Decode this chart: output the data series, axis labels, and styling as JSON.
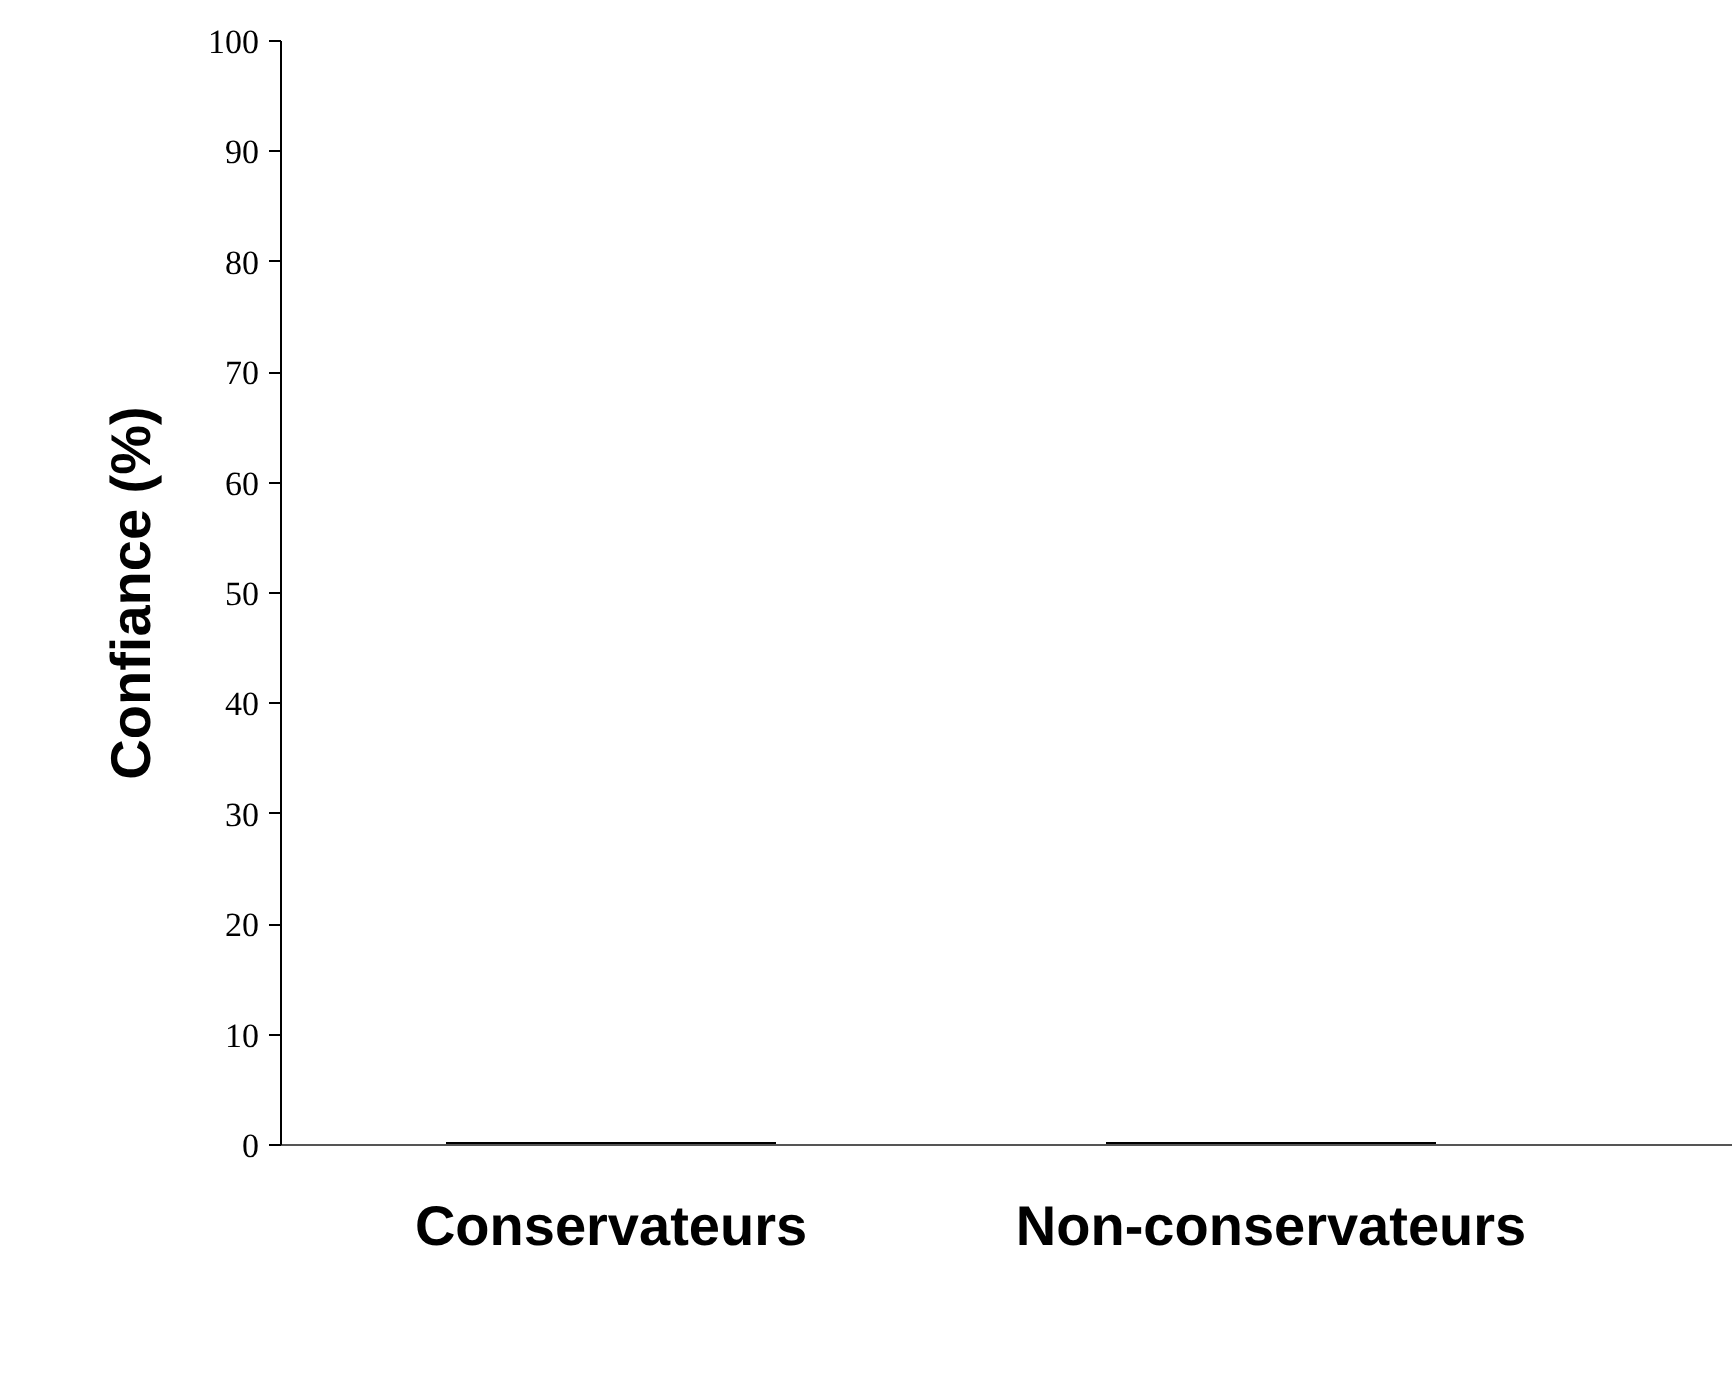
{
  "chart_data": {
    "type": "bar",
    "ylabel": "Confiance (%)",
    "categories": [
      "Conservateurs",
      "Non-conservateurs"
    ],
    "values": [
      0,
      0
    ],
    "color": "#000000",
    "ylim": [
      0,
      100
    ],
    "yticks": [
      0,
      10,
      20,
      30,
      40,
      50,
      60,
      70,
      80,
      90,
      100
    ],
    "grid": false
  }
}
